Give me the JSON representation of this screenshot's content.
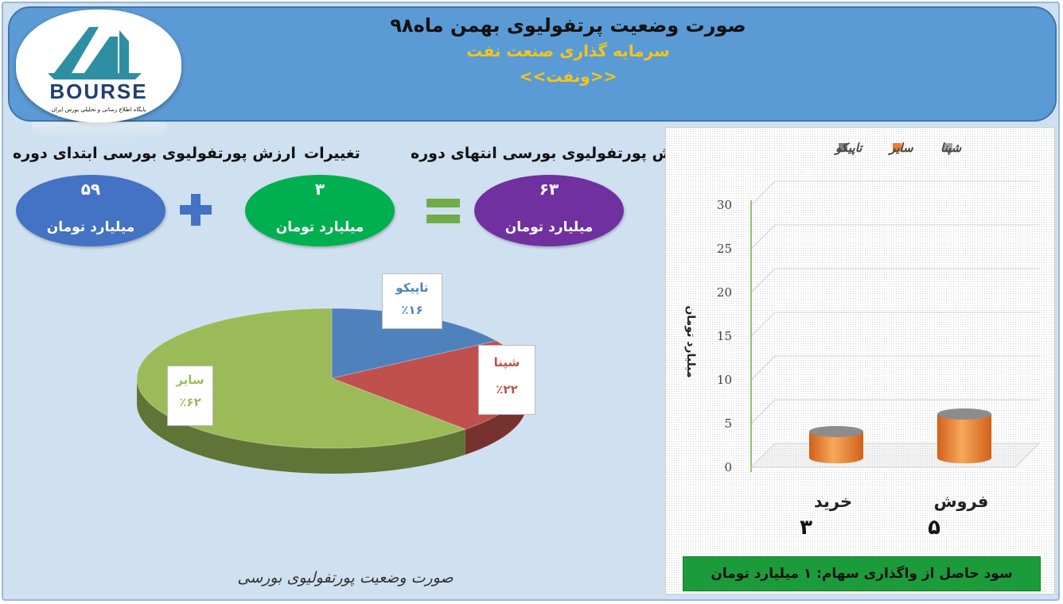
{
  "header": {
    "title": "صورت وضعیت پرتفولیوی بهمن ماه۹۸",
    "subtitle": "سرمایه گذاری صنعت نفت",
    "symbol": "<<ونفت>>"
  },
  "logo": {
    "text": "BOURSE",
    "tagline": "پایگاه اطلاع رسانی و تحلیلی بورس ایران"
  },
  "summary": {
    "start_label": "ارزش پورتفولیوی بورسی ابتدای دوره",
    "change_label": "تغییرات",
    "end_label": "ارزش پورتفولیوی بورسی انتهای دوره",
    "start_value": "۵۹",
    "change_value": "۳",
    "end_value": "۶۳",
    "unit": "میلیارد تومان",
    "plus_op": "+",
    "equals_op": "=",
    "colors": {
      "start": "#4472c4",
      "change": "#00b050",
      "end": "#7030a0"
    }
  },
  "chart_data": [
    {
      "type": "pie",
      "title": "",
      "caption": "صورت وضعیت پورتفولیوی بورسی",
      "categories": [
        "تاپیکو",
        "شپنا",
        "سایر"
      ],
      "values": [
        16,
        22,
        62
      ],
      "labels": [
        "٪۱۶",
        "٪۲۲",
        "٪۶۲"
      ],
      "colors": [
        "#4f81bd",
        "#c0504d",
        "#9bbb59"
      ],
      "label_colors": [
        "#4f81bd",
        "#c0504d",
        "#9bbb59"
      ]
    },
    {
      "type": "bar",
      "style": "3d-cylinder",
      "categories": [
        "خرید",
        "فروش"
      ],
      "category_values_text": [
        "۳",
        "۵"
      ],
      "series": [
        {
          "name": "شپنا",
          "values": [
            0,
            0
          ],
          "color": "#a5a5a5"
        },
        {
          "name": "سایر",
          "values": [
            3,
            5
          ],
          "color": "#ed7d31"
        },
        {
          "name": "تاپیکو",
          "values": [
            0,
            0
          ],
          "color": "#7f7f7f"
        }
      ],
      "ylabel": "میلیارد تومان",
      "ylim": [
        0,
        30
      ],
      "yticks": [
        "0",
        "5",
        "10",
        "15",
        "20",
        "25",
        "30"
      ],
      "legend": "top"
    }
  ],
  "profit": {
    "text": "سود حاصل از واگذاری سهام: ۱ میلیارد تومان"
  }
}
